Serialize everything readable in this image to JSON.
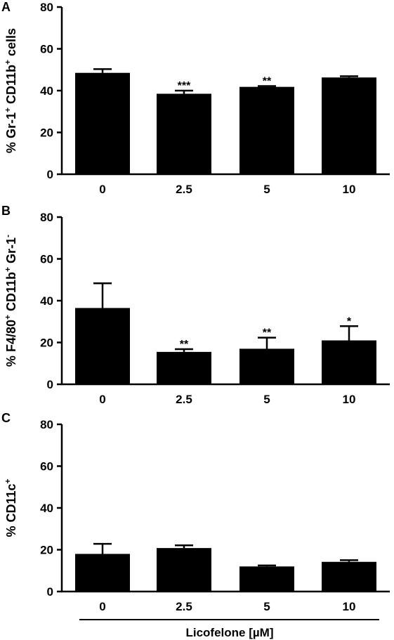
{
  "chart_data": [
    {
      "panel": "A",
      "type": "bar",
      "categories": [
        "0",
        "2.5",
        "5",
        "10"
      ],
      "values": [
        48.5,
        38.5,
        41.8,
        46.3
      ],
      "errors": [
        1.8,
        1.5,
        0.4,
        0.6
      ],
      "significance": [
        "",
        "***",
        "**",
        ""
      ],
      "ylabel": {
        "prefix": "% Gr-1",
        "sup1": "+",
        "mid": " CD11b",
        "sup2": "+",
        "suffix": " cells"
      },
      "ylim": [
        0,
        80
      ],
      "yticks": [
        0,
        20,
        40,
        60,
        80
      ],
      "grid": false
    },
    {
      "panel": "B",
      "type": "bar",
      "categories": [
        "0",
        "2.5",
        "5",
        "10"
      ],
      "values": [
        36.5,
        15.5,
        17.0,
        21.0
      ],
      "errors": [
        11.8,
        1.3,
        5.3,
        6.8
      ],
      "significance": [
        "",
        "**",
        "**",
        "*"
      ],
      "ylabel": {
        "prefix": "% F4/80",
        "sup1": "+",
        "mid": " CD11b",
        "sup2": "+",
        "mid2": " Gr-1",
        "sup3": "-"
      },
      "ylim": [
        0,
        80
      ],
      "yticks": [
        0,
        20,
        40,
        60,
        80
      ],
      "grid": false
    },
    {
      "panel": "C",
      "type": "bar",
      "categories": [
        "0",
        "2.5",
        "5",
        "10"
      ],
      "values": [
        18.0,
        20.8,
        12.0,
        14.2
      ],
      "errors": [
        4.8,
        1.3,
        0.5,
        0.8
      ],
      "significance": [
        "",
        "",
        "",
        ""
      ],
      "ylabel": {
        "prefix": "% CD11c",
        "sup1": "+"
      },
      "ylim": [
        0,
        80
      ],
      "yticks": [
        0,
        20,
        40,
        60,
        80
      ],
      "grid": false
    }
  ],
  "xlabel": "Licofelone [µM]",
  "colors": {
    "bar": "#000000",
    "axis": "#000000",
    "background": "#ffffff"
  }
}
